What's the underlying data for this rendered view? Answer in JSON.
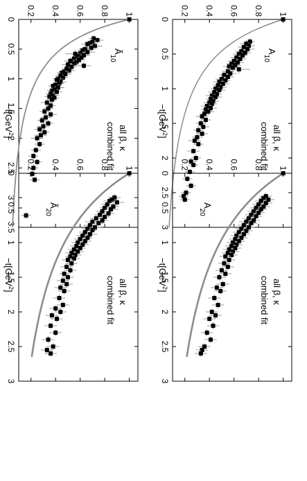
{
  "chart_data": [
    {
      "type": "scatter",
      "panel": "top-left",
      "label_main": "Ã",
      "label_sub": "10",
      "annotations": [
        "all β, κ",
        "combined  fit"
      ],
      "xlabel_prefix": "−t[GeV",
      "xlabel_sup": "2",
      "xlabel_suffix": "]",
      "xlim": [
        0,
        3.5
      ],
      "ylim": [
        0.1,
        1.07
      ],
      "xticks": [
        "0",
        "0.5",
        "1",
        "1.5",
        "2",
        "2.5",
        "3",
        "3.5"
      ],
      "yticks": [
        "1",
        "0.8",
        "0.6",
        "0.4",
        "0.2"
      ],
      "fit": {
        "type": "dipole",
        "mass2": 1.0,
        "power": 2,
        "xmax": 3.5
      },
      "points": [
        [
          0.0,
          1.0,
          0.0
        ],
        [
          0.32,
          0.71,
          0.04
        ],
        [
          0.35,
          0.74,
          0.05
        ],
        [
          0.38,
          0.7,
          0.06
        ],
        [
          0.4,
          0.68,
          0.05
        ],
        [
          0.42,
          0.66,
          0.05
        ],
        [
          0.45,
          0.72,
          0.06
        ],
        [
          0.48,
          0.69,
          0.05
        ],
        [
          0.5,
          0.64,
          0.05
        ],
        [
          0.52,
          0.62,
          0.04
        ],
        [
          0.55,
          0.66,
          0.06
        ],
        [
          0.57,
          0.6,
          0.04
        ],
        [
          0.58,
          0.56,
          0.08
        ],
        [
          0.6,
          0.63,
          0.05
        ],
        [
          0.62,
          0.58,
          0.04
        ],
        [
          0.64,
          0.61,
          0.04
        ],
        [
          0.66,
          0.55,
          0.04
        ],
        [
          0.68,
          0.59,
          0.05
        ],
        [
          0.7,
          0.52,
          0.05
        ],
        [
          0.72,
          0.57,
          0.04
        ],
        [
          0.74,
          0.55,
          0.04
        ],
        [
          0.76,
          0.5,
          0.05
        ],
        [
          0.78,
          0.63,
          0.06
        ],
        [
          0.8,
          0.53,
          0.04
        ],
        [
          0.83,
          0.49,
          0.04
        ],
        [
          0.86,
          0.51,
          0.05
        ],
        [
          0.88,
          0.47,
          0.04
        ],
        [
          0.9,
          0.45,
          0.04
        ],
        [
          0.92,
          0.48,
          0.05
        ],
        [
          0.95,
          0.44,
          0.04
        ],
        [
          0.98,
          0.46,
          0.04
        ],
        [
          1.0,
          0.42,
          0.04
        ],
        [
          1.02,
          0.41,
          0.03
        ],
        [
          1.05,
          0.44,
          0.05
        ],
        [
          1.08,
          0.43,
          0.04
        ],
        [
          1.1,
          0.4,
          0.04
        ],
        [
          1.12,
          0.38,
          0.04
        ],
        [
          1.15,
          0.42,
          0.05
        ],
        [
          1.18,
          0.39,
          0.04
        ],
        [
          1.2,
          0.37,
          0.04
        ],
        [
          1.22,
          0.41,
          0.04
        ],
        [
          1.25,
          0.36,
          0.04
        ],
        [
          1.28,
          0.38,
          0.05
        ],
        [
          1.3,
          0.35,
          0.04
        ],
        [
          1.32,
          0.39,
          0.04
        ],
        [
          1.35,
          0.37,
          0.04
        ],
        [
          1.4,
          0.33,
          0.05
        ],
        [
          1.45,
          0.36,
          0.04
        ],
        [
          1.5,
          0.34,
          0.04
        ],
        [
          1.55,
          0.31,
          0.04
        ],
        [
          1.6,
          0.36,
          0.05
        ],
        [
          1.65,
          0.32,
          0.04
        ],
        [
          1.7,
          0.29,
          0.04
        ],
        [
          1.75,
          0.34,
          0.04
        ],
        [
          1.8,
          0.3,
          0.05
        ],
        [
          1.85,
          0.27,
          0.04
        ],
        [
          1.9,
          0.31,
          0.04
        ],
        [
          1.95,
          0.28,
          0.05
        ],
        [
          2.0,
          0.25,
          0.05
        ],
        [
          2.1,
          0.27,
          0.04
        ],
        [
          2.2,
          0.24,
          0.04
        ],
        [
          2.3,
          0.22,
          0.04
        ],
        [
          2.4,
          0.25,
          0.04
        ],
        [
          2.5,
          0.22,
          0.04
        ],
        [
          2.6,
          0.21,
          0.04
        ],
        [
          2.7,
          0.23,
          0.04
        ],
        [
          3.3,
          0.16,
          0.04
        ]
      ]
    },
    {
      "type": "scatter",
      "panel": "top-right",
      "label_main": "A",
      "label_sub": "10",
      "annotations": [
        "all β, κ",
        "combined  fit"
      ],
      "xlabel_prefix": "−t[GeV",
      "xlabel_sup": "2",
      "xlabel_suffix": "]",
      "xlim": [
        0,
        3.0
      ],
      "ylim": [
        0.1,
        1.07
      ],
      "xticks": [
        "0",
        "0.5",
        "1",
        "1.5",
        "2",
        "2.5",
        "3"
      ],
      "yticks": [
        "1",
        "0.8",
        "0.6",
        "0.4",
        "0.2"
      ],
      "fit": {
        "type": "dipole",
        "mass2": 1.1,
        "power": 2,
        "xmax": 3.0
      },
      "points": [
        [
          0.0,
          1.0,
          0.0
        ],
        [
          0.32,
          0.73,
          0.04
        ],
        [
          0.35,
          0.7,
          0.05
        ],
        [
          0.38,
          0.72,
          0.05
        ],
        [
          0.4,
          0.68,
          0.05
        ],
        [
          0.43,
          0.71,
          0.06
        ],
        [
          0.46,
          0.66,
          0.05
        ],
        [
          0.48,
          0.69,
          0.05
        ],
        [
          0.5,
          0.64,
          0.05
        ],
        [
          0.52,
          0.67,
          0.04
        ],
        [
          0.55,
          0.62,
          0.05
        ],
        [
          0.57,
          0.65,
          0.05
        ],
        [
          0.6,
          0.6,
          0.05
        ],
        [
          0.62,
          0.63,
          0.05
        ],
        [
          0.64,
          0.58,
          0.04
        ],
        [
          0.66,
          0.61,
          0.05
        ],
        [
          0.68,
          0.56,
          0.05
        ],
        [
          0.7,
          0.59,
          0.04
        ],
        [
          0.72,
          0.64,
          0.09
        ],
        [
          0.75,
          0.55,
          0.05
        ],
        [
          0.78,
          0.57,
          0.05
        ],
        [
          0.8,
          0.52,
          0.04
        ],
        [
          0.83,
          0.55,
          0.05
        ],
        [
          0.86,
          0.5,
          0.05
        ],
        [
          0.88,
          0.53,
          0.04
        ],
        [
          0.9,
          0.48,
          0.05
        ],
        [
          0.93,
          0.51,
          0.05
        ],
        [
          0.95,
          0.47,
          0.04
        ],
        [
          0.98,
          0.49,
          0.05
        ],
        [
          1.0,
          0.45,
          0.04
        ],
        [
          1.02,
          0.48,
          0.05
        ],
        [
          1.05,
          0.44,
          0.05
        ],
        [
          1.08,
          0.46,
          0.04
        ],
        [
          1.1,
          0.42,
          0.05
        ],
        [
          1.12,
          0.45,
          0.05
        ],
        [
          1.15,
          0.41,
          0.04
        ],
        [
          1.18,
          0.43,
          0.05
        ],
        [
          1.2,
          0.4,
          0.05
        ],
        [
          1.22,
          0.42,
          0.04
        ],
        [
          1.25,
          0.38,
          0.05
        ],
        [
          1.28,
          0.41,
          0.05
        ],
        [
          1.3,
          0.37,
          0.04
        ],
        [
          1.33,
          0.39,
          0.05
        ],
        [
          1.36,
          0.36,
          0.04
        ],
        [
          1.4,
          0.34,
          0.05
        ],
        [
          1.45,
          0.37,
          0.04
        ],
        [
          1.5,
          0.33,
          0.04
        ],
        [
          1.55,
          0.35,
          0.05
        ],
        [
          1.6,
          0.31,
          0.04
        ],
        [
          1.65,
          0.34,
          0.05
        ],
        [
          1.7,
          0.3,
          0.04
        ],
        [
          1.75,
          0.28,
          0.05
        ],
        [
          1.8,
          0.31,
          0.04
        ],
        [
          1.9,
          0.27,
          0.05
        ],
        [
          2.0,
          0.29,
          0.04
        ],
        [
          2.05,
          0.25,
          0.05
        ],
        [
          2.1,
          0.27,
          0.04
        ],
        [
          2.2,
          0.24,
          0.04
        ],
        [
          2.3,
          0.22,
          0.04
        ],
        [
          2.4,
          0.25,
          0.04
        ],
        [
          2.5,
          0.21,
          0.04
        ],
        [
          2.55,
          0.19,
          0.04
        ],
        [
          2.6,
          0.2,
          0.04
        ]
      ]
    },
    {
      "type": "scatter",
      "panel": "bottom-left",
      "label_main": "Ã",
      "label_sub": "20",
      "annotations": [
        "all β, κ",
        "combined  fit"
      ],
      "xlabel_prefix": "−t[GeV",
      "xlabel_sup": "2",
      "xlabel_suffix": "]",
      "xlim": [
        0,
        3.0
      ],
      "ylim": [
        0.1,
        1.07
      ],
      "xticks": [
        "0",
        "0.5",
        "1",
        "1.5",
        "2",
        "2.5",
        "3"
      ],
      "yticks": [
        "1",
        "0.8",
        "0.6",
        "0.4",
        "0.2"
      ],
      "fit": {
        "type": "dipole",
        "mass2": 2.2,
        "power": 2,
        "xmax": 2.65
      },
      "points": [
        [
          0.0,
          1.0,
          0.0
        ],
        [
          0.35,
          0.88,
          0.05
        ],
        [
          0.38,
          0.86,
          0.04
        ],
        [
          0.4,
          0.84,
          0.05
        ],
        [
          0.42,
          0.9,
          0.06
        ],
        [
          0.45,
          0.82,
          0.05
        ],
        [
          0.48,
          0.87,
          0.05
        ],
        [
          0.5,
          0.8,
          0.04
        ],
        [
          0.52,
          0.85,
          0.06
        ],
        [
          0.55,
          0.78,
          0.05
        ],
        [
          0.58,
          0.83,
          0.05
        ],
        [
          0.6,
          0.76,
          0.05
        ],
        [
          0.63,
          0.8,
          0.04
        ],
        [
          0.65,
          0.73,
          0.05
        ],
        [
          0.68,
          0.78,
          0.05
        ],
        [
          0.7,
          0.7,
          0.06
        ],
        [
          0.72,
          0.75,
          0.05
        ],
        [
          0.75,
          0.68,
          0.05
        ],
        [
          0.78,
          0.72,
          0.05
        ],
        [
          0.8,
          0.66,
          0.05
        ],
        [
          0.82,
          0.7,
          0.04
        ],
        [
          0.85,
          0.64,
          0.05
        ],
        [
          0.88,
          0.68,
          0.06
        ],
        [
          0.9,
          0.62,
          0.05
        ],
        [
          0.93,
          0.66,
          0.04
        ],
        [
          0.95,
          0.6,
          0.05
        ],
        [
          0.98,
          0.64,
          0.05
        ],
        [
          1.0,
          0.58,
          0.05
        ],
        [
          1.03,
          0.62,
          0.05
        ],
        [
          1.05,
          0.57,
          0.05
        ],
        [
          1.08,
          0.6,
          0.04
        ],
        [
          1.1,
          0.55,
          0.05
        ],
        [
          1.13,
          0.58,
          0.05
        ],
        [
          1.15,
          0.53,
          0.05
        ],
        [
          1.18,
          0.56,
          0.05
        ],
        [
          1.2,
          0.52,
          0.04
        ],
        [
          1.23,
          0.55,
          0.05
        ],
        [
          1.25,
          0.5,
          0.05
        ],
        [
          1.3,
          0.53,
          0.05
        ],
        [
          1.35,
          0.49,
          0.05
        ],
        [
          1.4,
          0.52,
          0.05
        ],
        [
          1.45,
          0.47,
          0.04
        ],
        [
          1.5,
          0.5,
          0.05
        ],
        [
          1.55,
          0.46,
          0.05
        ],
        [
          1.6,
          0.49,
          0.05
        ],
        [
          1.65,
          0.44,
          0.05
        ],
        [
          1.7,
          0.47,
          0.05
        ],
        [
          1.8,
          0.43,
          0.05
        ],
        [
          1.9,
          0.46,
          0.05
        ],
        [
          1.95,
          0.4,
          0.05
        ],
        [
          2.0,
          0.44,
          0.05
        ],
        [
          2.05,
          0.37,
          0.05
        ],
        [
          2.1,
          0.41,
          0.05
        ],
        [
          2.2,
          0.36,
          0.05
        ],
        [
          2.3,
          0.4,
          0.05
        ],
        [
          2.4,
          0.34,
          0.05
        ],
        [
          2.5,
          0.38,
          0.05
        ],
        [
          2.55,
          0.33,
          0.05
        ],
        [
          2.6,
          0.36,
          0.05
        ]
      ]
    },
    {
      "type": "scatter",
      "panel": "bottom-right",
      "label_main": "A",
      "label_sub": "20",
      "annotations": [
        "all β, κ",
        "combined  fit"
      ],
      "xlabel_prefix": "−t[GeV",
      "xlabel_sup": "2",
      "xlabel_suffix": "]",
      "xlim": [
        0,
        3.0
      ],
      "ylim": [
        0.1,
        1.07
      ],
      "xticks": [
        "0",
        "0.5",
        "1",
        "1.5",
        "2",
        "2.5",
        "3"
      ],
      "yticks": [
        "1",
        "0.8",
        "0.6",
        "0.4",
        "0.2"
      ],
      "fit": {
        "type": "dipole",
        "mass2": 2.3,
        "power": 2,
        "xmax": 2.65
      },
      "points": [
        [
          0.0,
          1.0,
          0.0
        ],
        [
          0.33,
          0.86,
          0.05
        ],
        [
          0.36,
          0.84,
          0.04
        ],
        [
          0.38,
          0.88,
          0.05
        ],
        [
          0.4,
          0.82,
          0.05
        ],
        [
          0.43,
          0.86,
          0.05
        ],
        [
          0.45,
          0.8,
          0.05
        ],
        [
          0.48,
          0.84,
          0.05
        ],
        [
          0.5,
          0.78,
          0.05
        ],
        [
          0.52,
          0.82,
          0.05
        ],
        [
          0.55,
          0.76,
          0.05
        ],
        [
          0.57,
          0.8,
          0.05
        ],
        [
          0.6,
          0.74,
          0.05
        ],
        [
          0.62,
          0.78,
          0.05
        ],
        [
          0.65,
          0.72,
          0.05
        ],
        [
          0.68,
          0.76,
          0.05
        ],
        [
          0.7,
          0.7,
          0.06
        ],
        [
          0.72,
          0.74,
          0.05
        ],
        [
          0.75,
          0.68,
          0.05
        ],
        [
          0.78,
          0.72,
          0.05
        ],
        [
          0.8,
          0.66,
          0.05
        ],
        [
          0.83,
          0.7,
          0.05
        ],
        [
          0.85,
          0.64,
          0.05
        ],
        [
          0.88,
          0.68,
          0.05
        ],
        [
          0.9,
          0.62,
          0.05
        ],
        [
          0.93,
          0.66,
          0.05
        ],
        [
          0.95,
          0.61,
          0.05
        ],
        [
          0.98,
          0.64,
          0.05
        ],
        [
          1.0,
          0.59,
          0.05
        ],
        [
          1.03,
          0.62,
          0.05
        ],
        [
          1.05,
          0.58,
          0.05
        ],
        [
          1.08,
          0.61,
          0.05
        ],
        [
          1.1,
          0.56,
          0.05
        ],
        [
          1.13,
          0.59,
          0.05
        ],
        [
          1.15,
          0.55,
          0.05
        ],
        [
          1.18,
          0.58,
          0.05
        ],
        [
          1.2,
          0.53,
          0.05
        ],
        [
          1.25,
          0.56,
          0.05
        ],
        [
          1.3,
          0.52,
          0.05
        ],
        [
          1.35,
          0.55,
          0.05
        ],
        [
          1.4,
          0.5,
          0.05
        ],
        [
          1.45,
          0.53,
          0.05
        ],
        [
          1.5,
          0.48,
          0.05
        ],
        [
          1.6,
          0.51,
          0.05
        ],
        [
          1.65,
          0.46,
          0.05
        ],
        [
          1.7,
          0.49,
          0.05
        ],
        [
          1.8,
          0.44,
          0.05
        ],
        [
          1.9,
          0.47,
          0.05
        ],
        [
          2.0,
          0.42,
          0.05
        ],
        [
          2.05,
          0.45,
          0.05
        ],
        [
          2.1,
          0.4,
          0.05
        ],
        [
          2.2,
          0.43,
          0.05
        ],
        [
          2.3,
          0.38,
          0.05
        ],
        [
          2.4,
          0.41,
          0.05
        ],
        [
          2.5,
          0.36,
          0.05
        ],
        [
          2.55,
          0.34,
          0.05
        ],
        [
          2.6,
          0.33,
          0.05
        ]
      ]
    }
  ]
}
